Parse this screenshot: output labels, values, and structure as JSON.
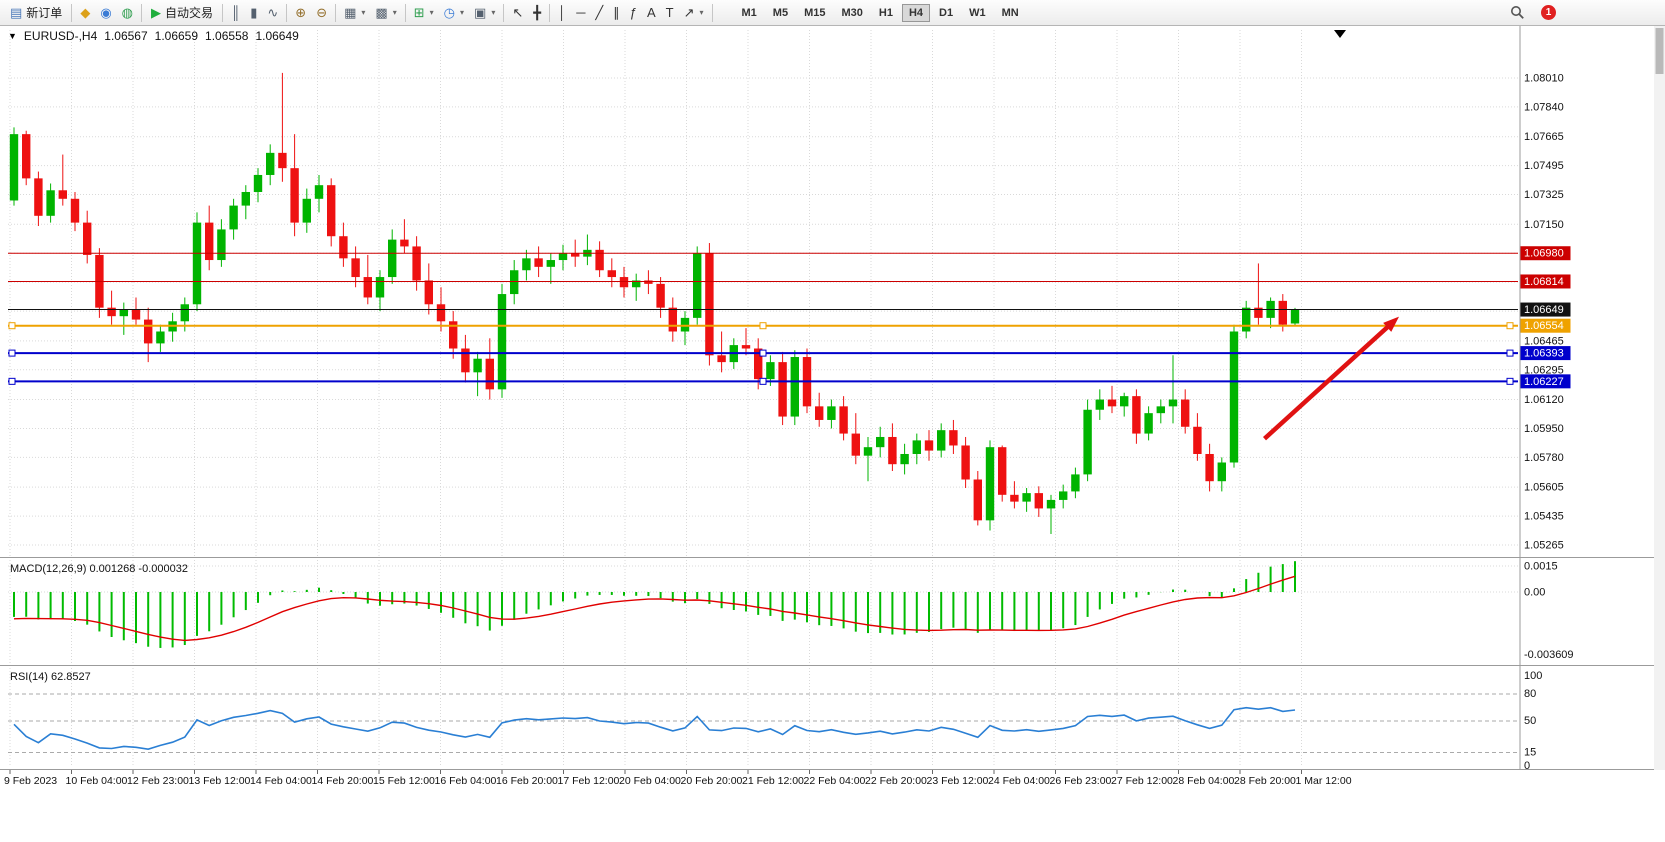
{
  "toolbar": {
    "dropdown_caret": "▾",
    "notification_count": "1",
    "timeframes": [
      "M1",
      "M5",
      "M15",
      "M30",
      "H1",
      "H4",
      "D1",
      "W1",
      "MN"
    ],
    "active_timeframe": "H4",
    "groups": [
      {
        "type": "labeled",
        "name": "new-order-button",
        "icon": "new-order-icon",
        "glyph": "▤",
        "color": "#4a78b8",
        "label": "新订单"
      },
      {
        "type": "icons",
        "items": [
          {
            "name": "metaeditor-icon",
            "glyph": "◆",
            "color": "#dca11a"
          },
          {
            "name": "user-profile-icon",
            "glyph": "◉",
            "color": "#3a7bd5"
          },
          {
            "name": "market-watch-icon",
            "glyph": "◍",
            "color": "#2f9e4f"
          }
        ]
      },
      {
        "type": "labeled",
        "name": "autotrading-button",
        "icon": "autotrading-icon",
        "glyph": "▶",
        "color": "#1fae3d",
        "label": "自动交易"
      },
      {
        "type": "icons",
        "items": [
          {
            "name": "bar-chart-icon",
            "glyph": "║",
            "color": "#54606e"
          },
          {
            "name": "candlestick-chart-icon",
            "glyph": "▮",
            "color": "#54606e"
          },
          {
            "name": "line-chart-icon",
            "glyph": "∿",
            "color": "#54606e"
          }
        ]
      },
      {
        "type": "icons",
        "items": [
          {
            "name": "zoom-in-icon",
            "glyph": "⊕",
            "color": "#94702e"
          },
          {
            "name": "zoom-out-icon",
            "glyph": "⊖",
            "color": "#94702e"
          }
        ]
      },
      {
        "type": "icons",
        "items": [
          {
            "name": "tile-windows-icon",
            "glyph": "▦",
            "color": "#54606e",
            "dd": true
          },
          {
            "name": "cascade-windows-icon",
            "glyph": "▩",
            "color": "#54606e",
            "dd": true
          }
        ]
      },
      {
        "type": "icons",
        "items": [
          {
            "name": "add-indicator-icon",
            "glyph": "⊞",
            "color": "#2f9e4f",
            "dd": true
          },
          {
            "name": "period-clock-icon",
            "glyph": "◷",
            "color": "#3a7bd5",
            "dd": true
          },
          {
            "name": "templates-icon",
            "glyph": "▣",
            "color": "#54606e",
            "dd": true
          }
        ]
      },
      {
        "type": "icons",
        "items": [
          {
            "name": "cursor-icon",
            "glyph": "↖",
            "color": "#333333"
          },
          {
            "name": "crosshair-icon",
            "glyph": "╋",
            "color": "#333333"
          }
        ]
      },
      {
        "type": "icons",
        "items": [
          {
            "name": "vertical-line-icon",
            "glyph": "│",
            "color": "#333333"
          },
          {
            "name": "horizontal-line-icon",
            "glyph": "─",
            "color": "#333333"
          },
          {
            "name": "trendline-icon",
            "glyph": "╱",
            "color": "#333333"
          },
          {
            "name": "equidistant-channel-icon",
            "glyph": "∥",
            "color": "#333333"
          },
          {
            "name": "fibonacci-icon",
            "glyph": "ƒ",
            "color": "#333333"
          },
          {
            "name": "text-icon",
            "glyph": "A",
            "color": "#333333"
          },
          {
            "name": "label-icon",
            "glyph": "T",
            "color": "#333333"
          },
          {
            "name": "arrows-tool-icon",
            "glyph": "↗",
            "color": "#333333",
            "dd": true
          }
        ]
      },
      {
        "type": "timeframes"
      }
    ]
  },
  "chart": {
    "one_click_arrow": "▼",
    "symbol_period": "EURUSD-,H4",
    "open": "1.06567",
    "high": "1.06659",
    "low": "1.06558",
    "close": "1.06649",
    "macd_label": "MACD(12,26,9) 0.001268 -0.000032",
    "rsi_label": "RSI(14) 62.8527"
  },
  "chart_data": {
    "type": "candlestick",
    "symbol": "EURUSD-",
    "timeframe": "H4",
    "current_ohlc": {
      "open": 1.06567,
      "high": 1.06659,
      "low": 1.06558,
      "close": 1.06649
    },
    "colors": {
      "up": "#00b400",
      "down": "#ee1111",
      "grid": "#d9d9d9",
      "macd_bar": "#00bb00",
      "macd_signal": "#e00000",
      "rsi_line": "#2a7fd4",
      "arrow": "#e01212"
    },
    "candles": [
      [
        1.0729,
        1.0772,
        1.0726,
        1.0768
      ],
      [
        1.0768,
        1.077,
        1.0738,
        1.0742
      ],
      [
        1.0742,
        1.0746,
        1.0714,
        1.072
      ],
      [
        1.072,
        1.0739,
        1.0716,
        1.0735
      ],
      [
        1.0735,
        1.0756,
        1.0726,
        1.073
      ],
      [
        1.073,
        1.0734,
        1.0711,
        1.0716
      ],
      [
        1.0716,
        1.0723,
        1.0692,
        1.0697
      ],
      [
        1.0697,
        1.0701,
        1.066,
        1.0666
      ],
      [
        1.0666,
        1.0676,
        1.0656,
        1.0661
      ],
      [
        1.0661,
        1.0669,
        1.065,
        1.0665
      ],
      [
        1.0665,
        1.0672,
        1.0656,
        1.0659
      ],
      [
        1.0659,
        1.0666,
        1.0634,
        1.0645
      ],
      [
        1.0645,
        1.0656,
        1.064,
        1.0652
      ],
      [
        1.0652,
        1.0663,
        1.0646,
        1.0658
      ],
      [
        1.0658,
        1.0672,
        1.0652,
        1.0668
      ],
      [
        1.0668,
        1.0722,
        1.0664,
        1.0716
      ],
      [
        1.0716,
        1.0726,
        1.0688,
        1.0694
      ],
      [
        1.0694,
        1.0718,
        1.069,
        1.0712
      ],
      [
        1.0712,
        1.073,
        1.0706,
        1.0726
      ],
      [
        1.0726,
        1.0738,
        1.0718,
        1.0734
      ],
      [
        1.0734,
        1.0748,
        1.0728,
        1.0744
      ],
      [
        1.0744,
        1.0762,
        1.0738,
        1.0757
      ],
      [
        1.0757,
        1.0804,
        1.074,
        1.0748
      ],
      [
        1.0748,
        1.0768,
        1.0708,
        1.0716
      ],
      [
        1.0716,
        1.0736,
        1.071,
        1.073
      ],
      [
        1.073,
        1.0744,
        1.0722,
        1.0738
      ],
      [
        1.0738,
        1.0742,
        1.0702,
        1.0708
      ],
      [
        1.0708,
        1.0716,
        1.069,
        1.0695
      ],
      [
        1.0695,
        1.0702,
        1.0678,
        1.0684
      ],
      [
        1.0684,
        1.0697,
        1.0668,
        1.0672
      ],
      [
        1.0672,
        1.0688,
        1.0664,
        1.0684
      ],
      [
        1.0684,
        1.0712,
        1.068,
        1.0706
      ],
      [
        1.0706,
        1.0718,
        1.0698,
        1.0702
      ],
      [
        1.0702,
        1.0708,
        1.0676,
        1.0682
      ],
      [
        1.0682,
        1.0692,
        1.0662,
        1.0668
      ],
      [
        1.0668,
        1.0678,
        1.0652,
        1.0658
      ],
      [
        1.0658,
        1.0664,
        1.0636,
        1.0642
      ],
      [
        1.0642,
        1.065,
        1.0622,
        1.0628
      ],
      [
        1.0628,
        1.064,
        1.0614,
        1.0636
      ],
      [
        1.0636,
        1.0648,
        1.0612,
        1.0618
      ],
      [
        1.0618,
        1.068,
        1.0613,
        1.0674
      ],
      [
        1.0674,
        1.0694,
        1.0668,
        1.0688
      ],
      [
        1.0688,
        1.07,
        1.0682,
        1.0695
      ],
      [
        1.0695,
        1.0702,
        1.0684,
        1.069
      ],
      [
        1.069,
        1.0698,
        1.068,
        1.0694
      ],
      [
        1.0694,
        1.0703,
        1.0688,
        1.0698
      ],
      [
        1.0698,
        1.0706,
        1.069,
        1.0696
      ],
      [
        1.0696,
        1.0709,
        1.0691,
        1.07
      ],
      [
        1.07,
        1.0705,
        1.0684,
        1.0688
      ],
      [
        1.0688,
        1.0695,
        1.0678,
        1.0684
      ],
      [
        1.0684,
        1.069,
        1.0672,
        1.0678
      ],
      [
        1.0678,
        1.0686,
        1.067,
        1.0682
      ],
      [
        1.0682,
        1.0688,
        1.0674,
        1.068
      ],
      [
        1.068,
        1.0684,
        1.066,
        1.0666
      ],
      [
        1.0666,
        1.0672,
        1.0646,
        1.0652
      ],
      [
        1.0652,
        1.0664,
        1.0644,
        1.066
      ],
      [
        1.066,
        1.0702,
        1.0656,
        1.0698
      ],
      [
        1.0698,
        1.0704,
        1.0632,
        1.0638
      ],
      [
        1.0638,
        1.0652,
        1.0628,
        1.0634
      ],
      [
        1.0634,
        1.0648,
        1.063,
        1.0644
      ],
      [
        1.0644,
        1.0654,
        1.0638,
        1.0642
      ],
      [
        1.0642,
        1.0648,
        1.0618,
        1.0624
      ],
      [
        1.0624,
        1.0638,
        1.062,
        1.0634
      ],
      [
        1.0634,
        1.064,
        1.0597,
        1.0602
      ],
      [
        1.0602,
        1.0641,
        1.0597,
        1.0637
      ],
      [
        1.0637,
        1.0642,
        1.0604,
        1.0608
      ],
      [
        1.0608,
        1.0616,
        1.0596,
        1.06
      ],
      [
        1.06,
        1.0612,
        1.0595,
        1.0608
      ],
      [
        1.0608,
        1.0614,
        1.0588,
        1.0592
      ],
      [
        1.0592,
        1.0604,
        1.0574,
        1.0579
      ],
      [
        1.0579,
        1.059,
        1.0564,
        1.0584
      ],
      [
        1.0584,
        1.0596,
        1.0578,
        1.059
      ],
      [
        1.059,
        1.0598,
        1.057,
        1.0574
      ],
      [
        1.0574,
        1.0586,
        1.0568,
        1.058
      ],
      [
        1.058,
        1.0592,
        1.0574,
        1.0588
      ],
      [
        1.0588,
        1.0594,
        1.0576,
        1.0582
      ],
      [
        1.0582,
        1.0598,
        1.0578,
        1.0594
      ],
      [
        1.0594,
        1.06,
        1.058,
        1.0585
      ],
      [
        1.0585,
        1.059,
        1.056,
        1.0565
      ],
      [
        1.0565,
        1.057,
        1.0538,
        1.0541
      ],
      [
        1.0541,
        1.0588,
        1.0535,
        1.0584
      ],
      [
        1.0584,
        1.0585,
        1.0552,
        1.0556
      ],
      [
        1.0556,
        1.0564,
        1.0548,
        1.0552
      ],
      [
        1.0552,
        1.056,
        1.0546,
        1.0557
      ],
      [
        1.0557,
        1.0561,
        1.0543,
        1.0548
      ],
      [
        1.0548,
        1.0556,
        1.0533,
        1.0553
      ],
      [
        1.0553,
        1.0562,
        1.0548,
        1.0558
      ],
      [
        1.0558,
        1.0572,
        1.0554,
        1.0568
      ],
      [
        1.0568,
        1.0612,
        1.0564,
        1.0606
      ],
      [
        1.0606,
        1.0618,
        1.06,
        1.0612
      ],
      [
        1.0612,
        1.062,
        1.0604,
        1.0608
      ],
      [
        1.0608,
        1.0616,
        1.0602,
        1.0614
      ],
      [
        1.0614,
        1.0618,
        1.0586,
        1.0592
      ],
      [
        1.0592,
        1.0608,
        1.0588,
        1.0604
      ],
      [
        1.0604,
        1.0612,
        1.0598,
        1.0608
      ],
      [
        1.0608,
        1.0638,
        1.0598,
        1.0612
      ],
      [
        1.0612,
        1.0618,
        1.0592,
        1.0596
      ],
      [
        1.0596,
        1.0604,
        1.0576,
        1.058
      ],
      [
        1.058,
        1.0586,
        1.0558,
        1.0564
      ],
      [
        1.0564,
        1.0578,
        1.0558,
        1.0575
      ],
      [
        1.0575,
        1.0656,
        1.0572,
        1.0652
      ],
      [
        1.0652,
        1.067,
        1.0648,
        1.0666
      ],
      [
        1.0666,
        1.0692,
        1.0656,
        1.066
      ],
      [
        1.066,
        1.0672,
        1.0654,
        1.067
      ],
      [
        1.067,
        1.0674,
        1.0652,
        1.0656
      ],
      [
        1.06567,
        1.06659,
        1.06558,
        1.06649
      ]
    ],
    "price_axis": {
      "gridlines": [
        1.0801,
        1.0784,
        1.07665,
        1.07495,
        1.07325,
        1.0715,
        1.0698,
        1.0681,
        1.0664,
        1.06465,
        1.06295,
        1.0612,
        1.0595,
        1.0578,
        1.05605,
        1.05435,
        1.05265
      ],
      "hidden_labels": [
        1.0698,
        1.0681,
        1.0664
      ],
      "tags": [
        {
          "value": 1.0698,
          "label": "1.06980",
          "color": "#cc0000"
        },
        {
          "value": 1.06814,
          "label": "1.06814",
          "color": "#cc0000"
        },
        {
          "value": 1.06649,
          "label": "1.06649",
          "color": "#111111"
        },
        {
          "value": 1.06554,
          "label": "1.06554",
          "color": "#efa200"
        },
        {
          "value": 1.06393,
          "label": "1.06393",
          "color": "#0000cc"
        },
        {
          "value": 1.06227,
          "label": "1.06227",
          "color": "#0000cc"
        }
      ]
    },
    "hlines": [
      {
        "value": 1.0698,
        "color": "#cc0000",
        "width": 1,
        "handles": false
      },
      {
        "value": 1.06814,
        "color": "#cc0000",
        "width": 1,
        "handles": false
      },
      {
        "value": 1.06649,
        "color": "#111111",
        "width": 1,
        "handles": false
      },
      {
        "value": 1.06554,
        "color": "#efa200",
        "width": 2,
        "handles": true
      },
      {
        "value": 1.06393,
        "color": "#0000cc",
        "width": 2,
        "handles": true
      },
      {
        "value": 1.06227,
        "color": "#0000cc",
        "width": 2,
        "handles": true
      }
    ],
    "time_labels": [
      "9 Feb 2023",
      "10 Feb 04:00",
      "12 Feb 23:00",
      "13 Feb 12:00",
      "14 Feb 04:00",
      "14 Feb 20:00",
      "15 Feb 12:00",
      "16 Feb 04:00",
      "16 Feb 20:00",
      "17 Feb 12:00",
      "20 Feb 04:00",
      "20 Feb 20:00",
      "21 Feb 12:00",
      "22 Feb 04:00",
      "22 Feb 20:00",
      "23 Feb 12:00",
      "24 Feb 04:00",
      "26 Feb 23:00",
      "27 Feb 12:00",
      "28 Feb 04:00",
      "28 Feb 20:00",
      "1 Mar 12:00"
    ],
    "macd": {
      "label": "MACD(12,26,9) 0.001268 -0.000032",
      "main": 0.001268,
      "signal": -3.2e-05,
      "axis_labels": [
        {
          "text": "0.0015",
          "value": 0.0015,
          "grid": true
        },
        {
          "text": "0.00",
          "value": 0.0,
          "grid": true
        },
        {
          "text": "-0.003609",
          "value": -0.003609,
          "grid": false
        }
      ]
    },
    "rsi": {
      "label": "RSI(14) 62.8527",
      "value": 62.8527,
      "levels": [
        80,
        50,
        15
      ],
      "axis_labels": [
        {
          "text": "100",
          "value": 100
        },
        {
          "text": "80",
          "value": 80
        },
        {
          "text": "50",
          "value": 50
        },
        {
          "text": "15",
          "value": 15
        },
        {
          "text": "0",
          "value": 0
        }
      ]
    },
    "arrow": {
      "from": {
        "index": 102.5,
        "price": 1.0589
      },
      "to": {
        "index": 112.8,
        "price": 1.0656
      }
    }
  }
}
